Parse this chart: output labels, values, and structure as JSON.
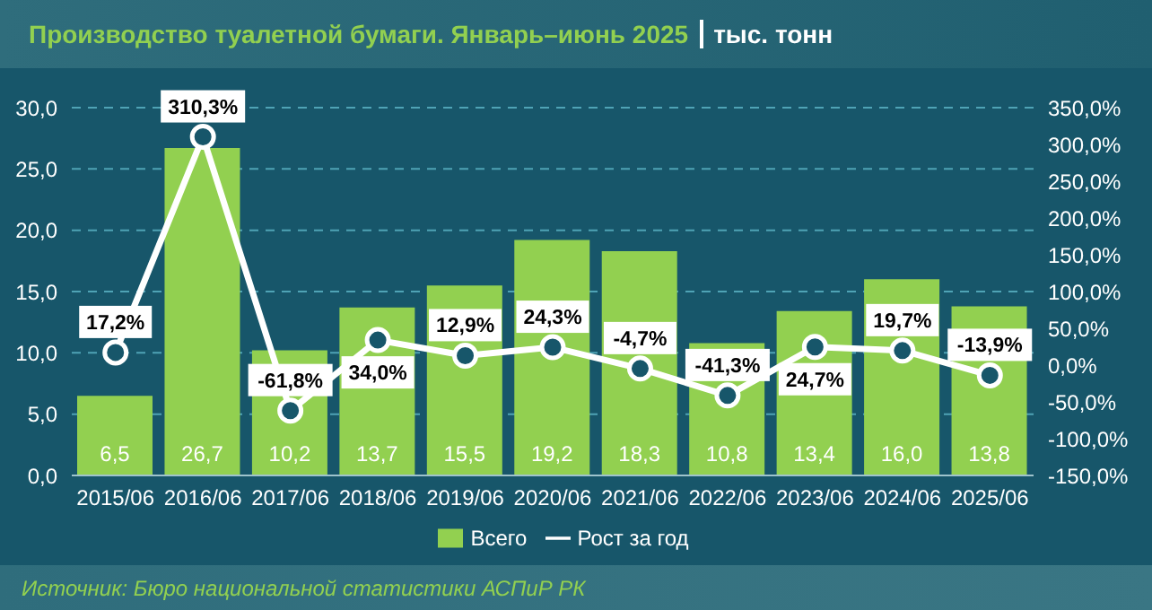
{
  "chart_data": {
    "type": "bar",
    "title": "Производство туалетной бумаги. Январь–июнь 2025",
    "subtitle": "тыс. тонн",
    "categories": [
      "2015/06",
      "2016/06",
      "2017/06",
      "2018/06",
      "2019/06",
      "2020/06",
      "2021/06",
      "2022/06",
      "2023/06",
      "2024/06",
      "2025/06"
    ],
    "series": [
      {
        "name": "Всего",
        "color": "#92d050",
        "values": [
          6.5,
          26.7,
          10.2,
          13.7,
          15.5,
          19.2,
          18.3,
          10.8,
          13.4,
          16.0,
          13.8
        ],
        "value_labels": [
          "6,5",
          "26,7",
          "10,2",
          "13,7",
          "15,5",
          "19,2",
          "18,3",
          "10,8",
          "13,4",
          "16,0",
          "13,8"
        ]
      },
      {
        "name": "Рост за год",
        "type": "line",
        "axis": "y2",
        "color": "#ffffff",
        "marker": "circle",
        "values": [
          17.2,
          310.3,
          -61.8,
          34.0,
          12.9,
          24.3,
          -4.7,
          -41.3,
          24.7,
          19.7,
          -13.9
        ],
        "value_labels": [
          "17,2%",
          "310,3%",
          "-61,8%",
          "34,0%",
          "12,9%",
          "24,3%",
          "-4,7%",
          "-41,3%",
          "24,7%",
          "19,7%",
          "-13,9%"
        ]
      }
    ],
    "ylim": [
      0,
      30
    ],
    "yticks": [
      {
        "value": 0,
        "label": "0,0"
      },
      {
        "value": 5,
        "label": "5,0"
      },
      {
        "value": 10,
        "label": "10,0"
      },
      {
        "value": 15,
        "label": "15,0"
      },
      {
        "value": 20,
        "label": "20,0"
      },
      {
        "value": 25,
        "label": "25,0"
      },
      {
        "value": 30,
        "label": "30,0"
      }
    ],
    "y2lim": [
      -150,
      350
    ],
    "y2ticks": [
      {
        "value": -150,
        "label": "-150,0%"
      },
      {
        "value": -100,
        "label": "-100,0%"
      },
      {
        "value": -50,
        "label": "-50,0%"
      },
      {
        "value": 0,
        "label": "0,0%"
      },
      {
        "value": 50,
        "label": "50,0%"
      },
      {
        "value": 100,
        "label": "100,0%"
      },
      {
        "value": 150,
        "label": "150,0%"
      },
      {
        "value": 200,
        "label": "200,0%"
      },
      {
        "value": 250,
        "label": "250,0%"
      },
      {
        "value": 300,
        "label": "300,0%"
      },
      {
        "value": 350,
        "label": "350,0%"
      }
    ],
    "grid": "y",
    "legend": "bottom",
    "annotations": [
      "Источник: Бюро национальной статистики АСПиР РК"
    ]
  }
}
